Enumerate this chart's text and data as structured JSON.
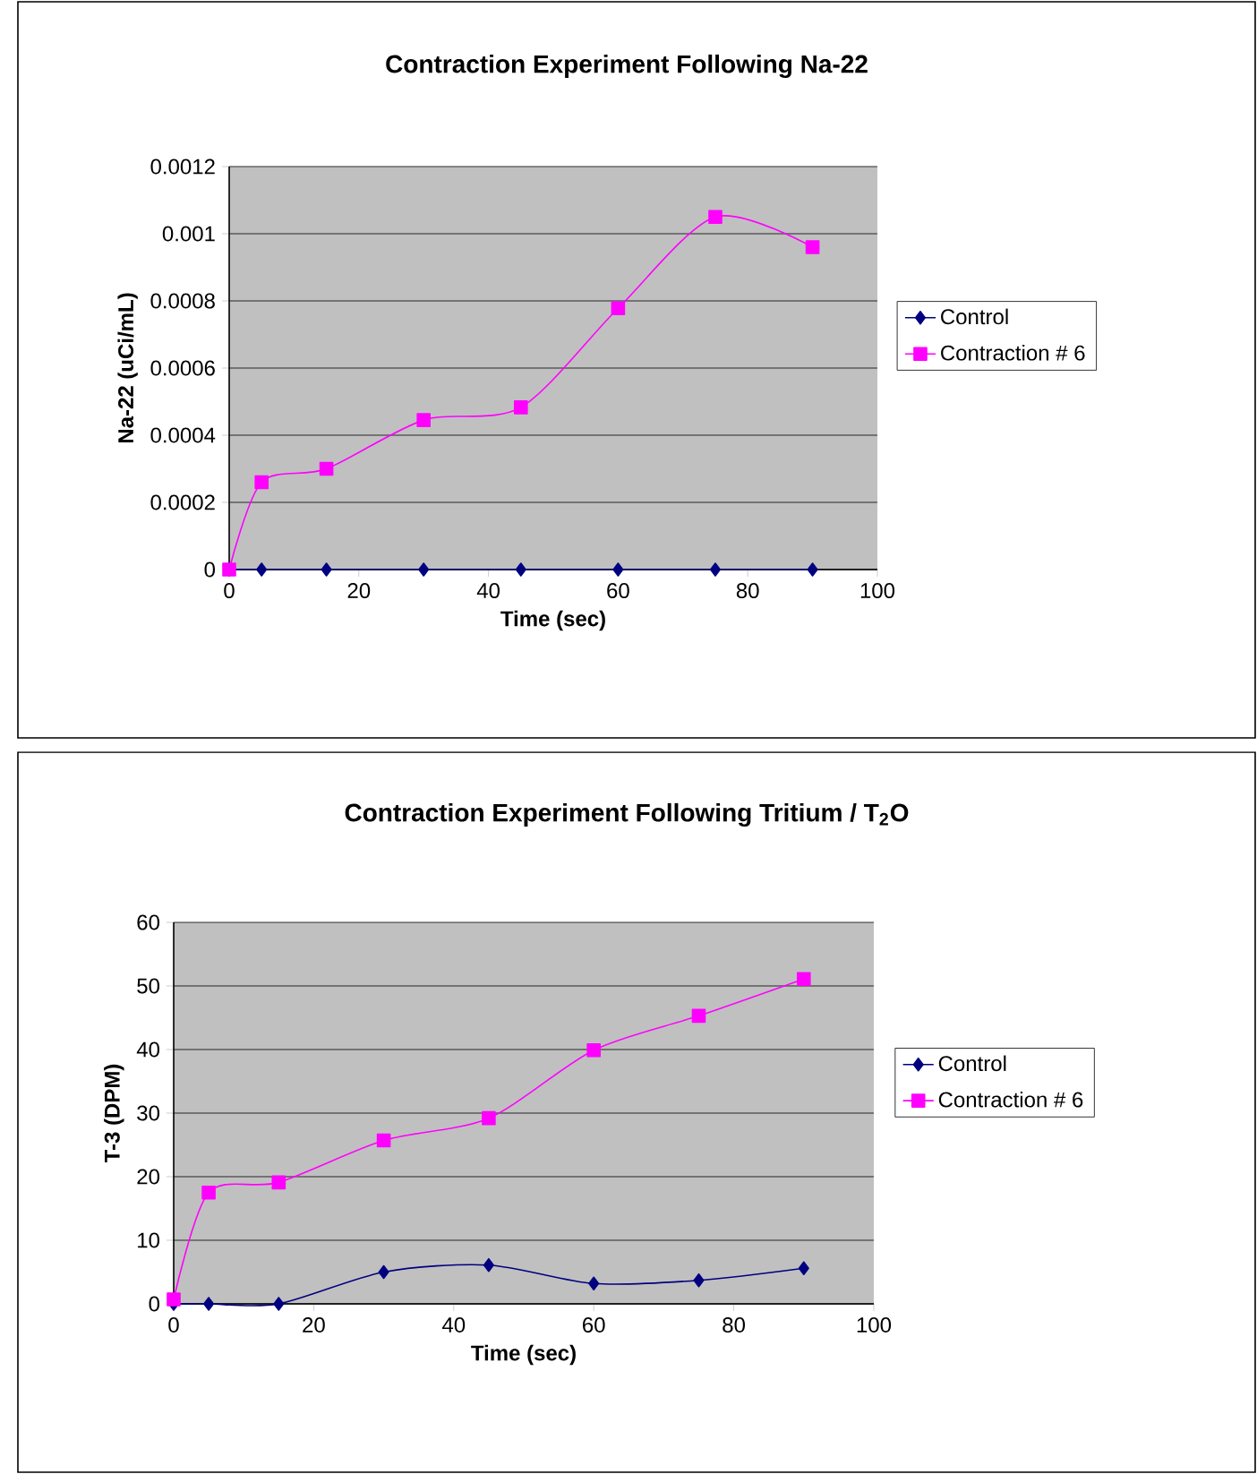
{
  "chart_data": [
    {
      "type": "line",
      "title": "Contraction Experiment Following Na-22",
      "xlabel": "Time (sec)",
      "ylabel": "Na-22 (uCi/mL)",
      "x": [
        0,
        5,
        15,
        30,
        45,
        60,
        75,
        90
      ],
      "series": [
        {
          "name": "Control",
          "color": "#000080",
          "marker": "diamond",
          "values": [
            0,
            0,
            0,
            0,
            0,
            0,
            0,
            0
          ]
        },
        {
          "name": "Contraction # 6",
          "color": "#ff00ff",
          "marker": "square",
          "values": [
            0,
            0.00026,
            0.0003,
            0.000445,
            0.000483,
            0.000778,
            0.00105,
            0.00096
          ]
        }
      ],
      "xlim": [
        0,
        100
      ],
      "xticks": [
        0,
        20,
        40,
        60,
        80,
        100
      ],
      "ylim": [
        0,
        0.0012
      ],
      "yticks": [
        0,
        0.0002,
        0.0004,
        0.0006,
        0.0008,
        0.001,
        0.0012
      ],
      "grid": "y",
      "legend": "right",
      "line_style": "solid"
    },
    {
      "type": "line",
      "title": "Contraction Experiment Following Tritium / T$_{2}$O",
      "xlabel": "Time (sec)",
      "ylabel": "T-3 (DPM)",
      "x": [
        0,
        5,
        15,
        30,
        45,
        60,
        75,
        90
      ],
      "series": [
        {
          "name": "Control",
          "color": "#000080",
          "marker": "diamond",
          "values": [
            0,
            0,
            0,
            5,
            6.1,
            3.2,
            3.7,
            5.6
          ]
        },
        {
          "name": "Contraction # 6",
          "color": "#ff00ff",
          "marker": "square",
          "values": [
            0.7,
            17.5,
            19.1,
            25.7,
            29.2,
            39.9,
            45.3,
            51.1
          ]
        }
      ],
      "xlim": [
        0,
        100
      ],
      "xticks": [
        0,
        20,
        40,
        60,
        80,
        100
      ],
      "ylim": [
        0,
        60
      ],
      "yticks": [
        0,
        10,
        20,
        30,
        40,
        50,
        60
      ],
      "grid": "y",
      "legend": "right",
      "line_style": "solid"
    }
  ]
}
